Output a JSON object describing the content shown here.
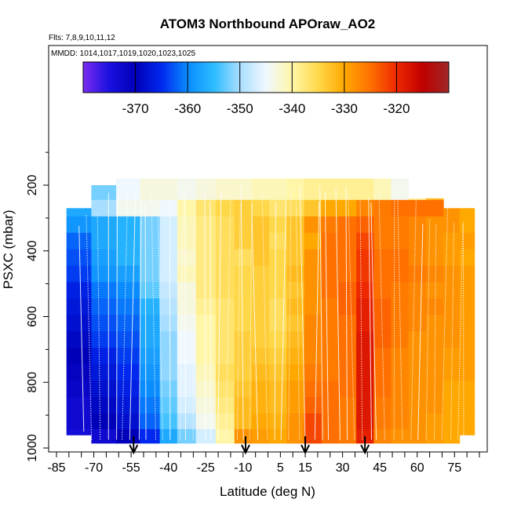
{
  "chart_data": {
    "type": "heatmap",
    "title": "ATOM3 Northbound APOraw_AO2",
    "flights_note": "Flts: 7,8,9,10,11,12",
    "dates_note": "MMDD: 1014,1017,1019,1020,1023,1025",
    "xlabel": "Latitude (deg N)",
    "ylabel": "PSXC (mbar)",
    "xlim": [
      -85,
      85
    ],
    "ylim": [
      1000,
      0
    ],
    "x_ticks": [
      "-85",
      "-70",
      "-55",
      "-40",
      "-25",
      "-10",
      "5",
      "15",
      "30",
      "45",
      "60",
      "75"
    ],
    "x_tick_values": [
      -85,
      -70,
      -55,
      -40,
      -25,
      -10,
      5,
      15,
      30,
      45,
      60,
      75
    ],
    "y_ticks": [
      "200",
      "400",
      "600",
      "800",
      "1000"
    ],
    "y_tick_values": [
      200,
      400,
      600,
      800,
      1000
    ],
    "colorbar": {
      "range": [
        -380,
        -310
      ],
      "ticks": [
        "-370",
        "-360",
        "-350",
        "-340",
        "-330",
        "-320"
      ],
      "tick_values": [
        -370,
        -360,
        -350,
        -340,
        -330,
        -320
      ],
      "colors": [
        "#7b2cf0",
        "#1a10e0",
        "#0000b8",
        "#0028ee",
        "#0a8cff",
        "#2cbcff",
        "#a8deff",
        "#f0f8ff",
        "#fff6a8",
        "#ffd84a",
        "#ffa800",
        "#ff7000",
        "#ee2800",
        "#c00000",
        "#a02828"
      ]
    },
    "lat_bins": [
      -76,
      -66,
      -56,
      -47,
      -40,
      -33,
      -25,
      -17,
      -10,
      -3,
      4,
      11,
      18,
      25,
      32,
      39,
      46,
      53,
      60,
      67,
      74,
      80
    ],
    "p_levels": [
      220,
      270,
      320,
      370,
      420,
      470,
      520,
      570,
      620,
      670,
      720,
      770,
      820,
      870,
      920,
      965
    ],
    "p_bottom": 985,
    "values": [
      [
        -350,
        -352,
        -345,
        -343,
        -343,
        -344,
        -343,
        -342,
        -342,
        -341,
        -341,
        -340,
        -339,
        -339,
        -339,
        -339,
        -341,
        -344,
        -339,
        -332,
        -330,
        -330
      ],
      [
        -357,
        -350,
        -344,
        -344,
        -345,
        -340,
        -337,
        -335,
        -334,
        -335,
        -337,
        -336,
        -333,
        -330,
        -330,
        -327,
        -326,
        -325,
        -325,
        -325,
        -328,
        -330
      ],
      [
        -359,
        -357,
        -356,
        -352,
        -347,
        -341,
        -338,
        -336,
        -334,
        -333,
        -335,
        -333,
        -328,
        -326,
        -325,
        -324,
        -326,
        -326,
        -327,
        -328,
        -328,
        -330
      ],
      [
        -362,
        -357,
        -356,
        -352,
        -347,
        -341,
        -338,
        -336,
        -334,
        -333,
        -336,
        -333,
        -330,
        -325,
        -325,
        -322,
        -326,
        -326,
        -327,
        -328,
        -329,
        -329
      ],
      [
        -363,
        -358,
        -356,
        -352,
        -347,
        -342,
        -338,
        -336,
        -336,
        -333,
        -335,
        -333,
        -328,
        -325,
        -325,
        -321,
        -325,
        -325,
        -327,
        -328,
        -329,
        -330
      ],
      [
        -364,
        -359,
        -358,
        -352,
        -347,
        -341,
        -338,
        -336,
        -335,
        -334,
        -335,
        -332,
        -328,
        -325,
        -325,
        -321,
        -325,
        -325,
        -326,
        -327,
        -328,
        -329
      ],
      [
        -366,
        -361,
        -360,
        -353,
        -348,
        -343,
        -338,
        -336,
        -335,
        -334,
        -335,
        -333,
        -328,
        -325,
        -324,
        -320,
        -325,
        -326,
        -327,
        -328,
        -328,
        -329
      ],
      [
        -367,
        -362,
        -361,
        -356,
        -349,
        -343,
        -339,
        -337,
        -335,
        -334,
        -336,
        -332,
        -328,
        -326,
        -324,
        -319,
        -324,
        -326,
        -327,
        -327,
        -328,
        -329
      ],
      [
        -368,
        -363,
        -362,
        -357,
        -350,
        -344,
        -340,
        -337,
        -335,
        -334,
        -336,
        -333,
        -327,
        -326,
        -325,
        -319,
        -324,
        -326,
        -327,
        -328,
        -328,
        -329
      ],
      [
        -369,
        -364,
        -363,
        -357,
        -351,
        -345,
        -340,
        -337,
        -334,
        -334,
        -335,
        -332,
        -327,
        -326,
        -325,
        -318,
        -324,
        -326,
        -328,
        -328,
        -328,
        -329
      ],
      [
        -370,
        -366,
        -364,
        -358,
        -351,
        -345,
        -340,
        -337,
        -334,
        -333,
        -334,
        -331,
        -327,
        -326,
        -325,
        -318,
        -325,
        -327,
        -328,
        -328,
        -329,
        -329
      ],
      [
        -371,
        -367,
        -365,
        -359,
        -351,
        -346,
        -341,
        -336,
        -334,
        -332,
        -333,
        -330,
        -326,
        -326,
        -325,
        -318,
        -325,
        -327,
        -328,
        -328,
        -329,
        -329
      ],
      [
        -372,
        -368,
        -366,
        -360,
        -352,
        -346,
        -342,
        -337,
        -333,
        -331,
        -332,
        -329,
        -325,
        -325,
        -325,
        -318,
        -325,
        -327,
        -328,
        -328,
        -330,
        -330
      ],
      [
        -373,
        -369,
        -367,
        -361,
        -353,
        -347,
        -343,
        -338,
        -332,
        -331,
        -332,
        -329,
        -324,
        -325,
        -326,
        -318,
        -326,
        -327,
        -328,
        -328,
        -330,
        -330
      ],
      [
        -373,
        -370,
        -368,
        -362,
        -354,
        -349,
        -344,
        -339,
        -332,
        -330,
        -331,
        -328,
        -322,
        -325,
        -326,
        -318,
        -326,
        -327,
        -328,
        -329,
        -330,
        -330
      ],
      [
        -374,
        -373,
        -370,
        -365,
        -357,
        -352,
        -347,
        -340,
        -328,
        -329,
        -330,
        -328,
        -322,
        -325,
        -326,
        -319,
        -327,
        -328,
        -328,
        -329,
        -330,
        -330
      ]
    ],
    "arrows_at_latitude": [
      -54,
      -9,
      15,
      39
    ]
  }
}
